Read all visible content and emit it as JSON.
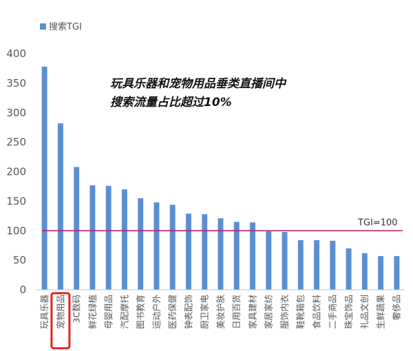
{
  "chart_data": {
    "type": "bar",
    "series": [
      {
        "name": "搜索TGI",
        "values": [
          378,
          282,
          208,
          177,
          176,
          170,
          155,
          148,
          144,
          129,
          128,
          121,
          115,
          114,
          99,
          98,
          84,
          84,
          83,
          70,
          62,
          57,
          57
        ]
      }
    ],
    "categories": [
      "玩具乐器",
      "宠物用品",
      "3C数码",
      "鲜花绿植",
      "母婴用品",
      "汽配摩托",
      "图书教育",
      "运动户外",
      "医药保健",
      "钟表配饰",
      "厨卫家电",
      "美妆护肤",
      "日用百货",
      "家具建材",
      "家居家纺",
      "服饰内衣",
      "鞋靴箱包",
      "食品饮料",
      "二手商品",
      "珠宝饰品",
      "礼品文创",
      "生鲜蔬果",
      "奢侈品"
    ],
    "yticks": [
      "0",
      "50",
      "100",
      "150",
      "200",
      "250",
      "300",
      "350",
      "400"
    ],
    "ylim": [
      0,
      400
    ],
    "grid": false,
    "legend_position": "top-left",
    "highlighted_category": "宠物用品",
    "reference_line": {
      "value": 100,
      "label": "TGI=100",
      "color": "#c2185b"
    },
    "annotation": [
      "玩具乐器和宠物用品垂类直播间中",
      "搜索流量占比超过10%"
    ],
    "colors": {
      "bar": "#5b8fd0",
      "highlight_box": "#e0221e",
      "axis": "#bfbfbf"
    }
  }
}
